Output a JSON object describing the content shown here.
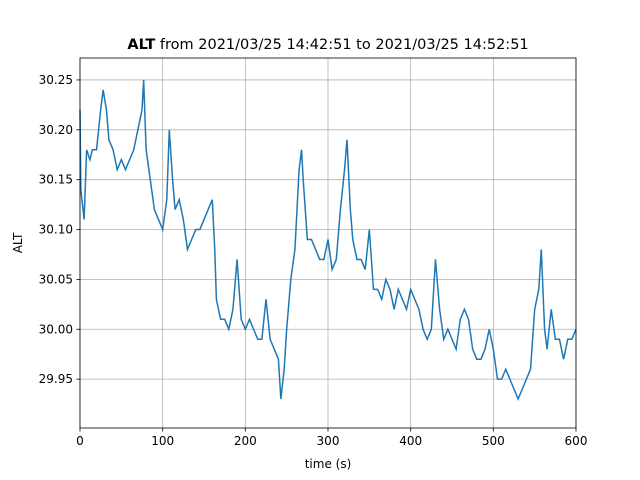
{
  "chart_data": {
    "type": "line",
    "title": {
      "name": "ALT",
      "text": "from 2021/03/25 14:42:51 to 2021/03/25 14:52:51"
    },
    "xlabel": "time (s)",
    "ylabel": "ALT",
    "x": [
      0,
      1,
      5,
      8,
      12,
      15,
      20,
      25,
      28,
      32,
      35,
      40,
      45,
      50,
      55,
      60,
      65,
      70,
      75,
      77,
      80,
      85,
      90,
      95,
      100,
      105,
      108,
      112,
      115,
      120,
      125,
      130,
      135,
      140,
      145,
      150,
      155,
      160,
      163,
      165,
      170,
      175,
      180,
      185,
      190,
      195,
      200,
      205,
      210,
      215,
      220,
      225,
      230,
      235,
      240,
      243,
      247,
      250,
      255,
      260,
      265,
      268,
      270,
      275,
      280,
      285,
      290,
      295,
      300,
      305,
      310,
      315,
      320,
      323,
      327,
      330,
      335,
      340,
      345,
      350,
      355,
      360,
      365,
      370,
      375,
      380,
      385,
      390,
      395,
      400,
      405,
      410,
      415,
      420,
      425,
      430,
      435,
      440,
      445,
      450,
      455,
      460,
      465,
      470,
      475,
      480,
      485,
      490,
      495,
      500,
      505,
      510,
      515,
      520,
      525,
      530,
      535,
      540,
      545,
      550,
      555,
      558,
      562,
      565,
      570,
      575,
      580,
      585,
      590,
      595,
      600
    ],
    "series": [
      {
        "name": "ALT",
        "color": "#1f77b4",
        "values": [
          30.22,
          30.14,
          30.11,
          30.18,
          30.17,
          30.18,
          30.18,
          30.22,
          30.24,
          30.22,
          30.19,
          30.18,
          30.16,
          30.17,
          30.16,
          30.17,
          30.18,
          30.2,
          30.22,
          30.25,
          30.18,
          30.15,
          30.12,
          30.11,
          30.1,
          30.13,
          30.2,
          30.15,
          30.12,
          30.13,
          30.11,
          30.08,
          30.09,
          30.1,
          30.1,
          30.11,
          30.12,
          30.13,
          30.08,
          30.03,
          30.01,
          30.01,
          30.0,
          30.02,
          30.07,
          30.01,
          30.0,
          30.01,
          30.0,
          29.99,
          29.99,
          30.03,
          29.99,
          29.98,
          29.97,
          29.93,
          29.96,
          30.0,
          30.05,
          30.08,
          30.16,
          30.18,
          30.15,
          30.09,
          30.09,
          30.08,
          30.07,
          30.07,
          30.09,
          30.06,
          30.07,
          30.12,
          30.16,
          30.19,
          30.12,
          30.09,
          30.07,
          30.07,
          30.06,
          30.1,
          30.04,
          30.04,
          30.03,
          30.05,
          30.04,
          30.02,
          30.04,
          30.03,
          30.02,
          30.04,
          30.03,
          30.02,
          30.0,
          29.99,
          30.0,
          30.07,
          30.02,
          29.99,
          30.0,
          29.99,
          29.98,
          30.01,
          30.02,
          30.01,
          29.98,
          29.97,
          29.97,
          29.98,
          30.0,
          29.98,
          29.95,
          29.95,
          29.96,
          29.95,
          29.94,
          29.93,
          29.94,
          29.95,
          29.96,
          30.02,
          30.04,
          30.08,
          30.0,
          29.98,
          30.02,
          29.99,
          29.99,
          29.97,
          29.99,
          29.99,
          30.0
        ]
      }
    ],
    "xlim": [
      0,
      600
    ],
    "xticks": [
      0,
      100,
      200,
      300,
      400,
      500,
      600
    ],
    "ylim": [
      29.901,
      30.272
    ],
    "yticks": [
      29.95,
      {
        "value": 30,
        "label": "30.00"
      },
      30.05,
      {
        "value": 30.1,
        "label": "30.10"
      },
      30.15,
      {
        "value": 30.2,
        "label": "30.20"
      },
      30.25
    ],
    "grid": true
  }
}
